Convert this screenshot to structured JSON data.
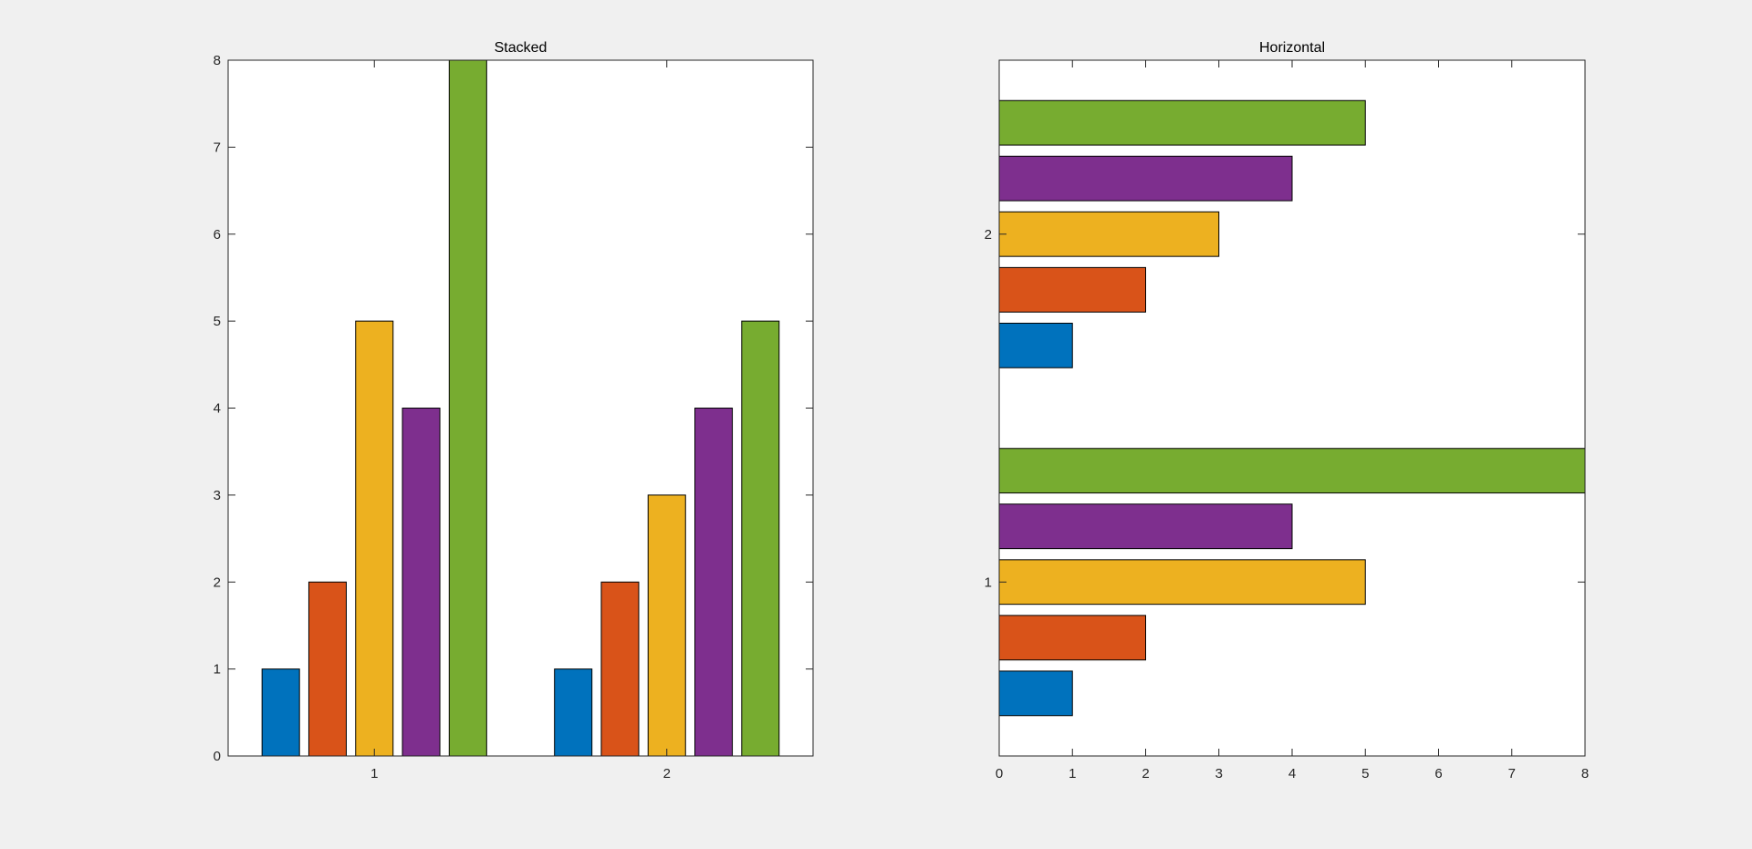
{
  "figure": {
    "background": "#f0f0f0",
    "axes_background": "#ffffff",
    "edge_color": "#000000"
  },
  "colors": [
    "#0072bd",
    "#d95319",
    "#edb120",
    "#7e2f8e",
    "#77ac30"
  ],
  "chart_data": [
    {
      "type": "bar",
      "orientation": "vertical",
      "title": "Stacked",
      "xlabel": "",
      "ylabel": "",
      "categories": [
        "1",
        "2"
      ],
      "series": [
        {
          "values": [
            1,
            1
          ]
        },
        {
          "values": [
            2,
            2
          ]
        },
        {
          "values": [
            5,
            3
          ]
        },
        {
          "values": [
            4,
            4
          ]
        },
        {
          "values": [
            8,
            5
          ]
        }
      ],
      "ylim": [
        0,
        8
      ],
      "yticks": [
        "0",
        "1",
        "2",
        "3",
        "4",
        "5",
        "6",
        "7",
        "8"
      ],
      "grid": false,
      "legend": "none"
    },
    {
      "type": "bar",
      "orientation": "horizontal",
      "title": "Horizontal",
      "xlabel": "",
      "ylabel": "",
      "categories": [
        "1",
        "2"
      ],
      "series": [
        {
          "values": [
            1,
            1
          ]
        },
        {
          "values": [
            2,
            2
          ]
        },
        {
          "values": [
            5,
            3
          ]
        },
        {
          "values": [
            4,
            4
          ]
        },
        {
          "values": [
            8,
            5
          ]
        }
      ],
      "xlim": [
        0,
        8
      ],
      "xticks": [
        "0",
        "1",
        "2",
        "3",
        "4",
        "5",
        "6",
        "7",
        "8"
      ],
      "grid": false,
      "legend": "none"
    }
  ]
}
